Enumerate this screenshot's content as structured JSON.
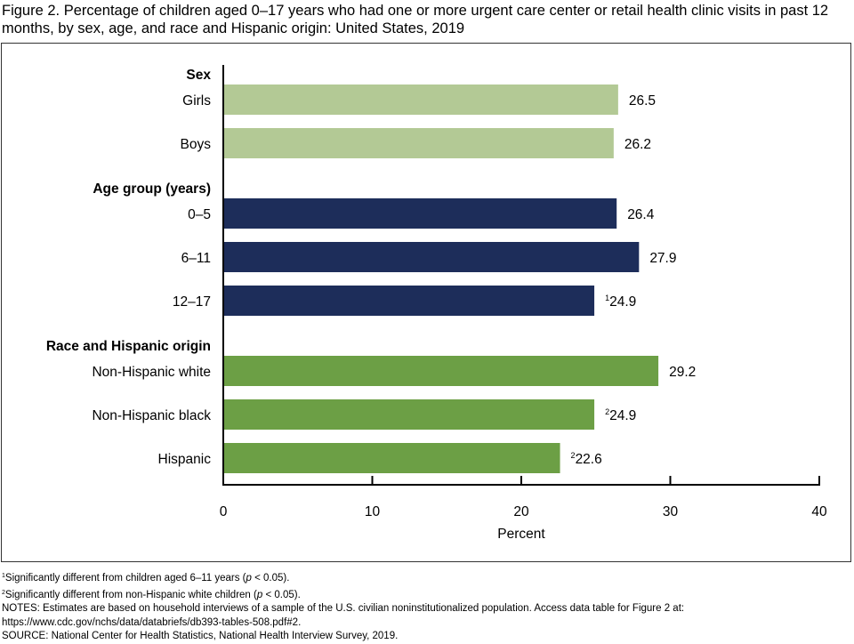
{
  "title": "Figure 2. Percentage of children aged 0–17 years who had one or more urgent care center or retail health clinic visits in past 12 months, by sex, age, and race and Hispanic origin: United States, 2019",
  "colors": {
    "sex": "#b3c995",
    "age": "#1d2d5a",
    "race": "#6c9f45",
    "axis": "#000000",
    "frame": "#333333"
  },
  "chart_data": {
    "type": "bar",
    "orientation": "horizontal",
    "title": "Figure 2. Percentage of children aged 0–17 years who had one or more urgent care center or retail health clinic visits in past 12 months, by sex, age, and race and Hispanic origin: United States, 2019",
    "xlabel": "Percent",
    "ylabel": "",
    "xlim": [
      0,
      40
    ],
    "xticks": [
      "0",
      "10",
      "20",
      "30",
      "40"
    ],
    "grid": false,
    "groups": [
      {
        "name": "Sex",
        "color_key": "sex",
        "categories": [
          "Girls",
          "Boys"
        ],
        "values": [
          26.5,
          26.2
        ],
        "labels": [
          "26.5",
          "26.2"
        ],
        "footnotes": [
          "",
          ""
        ]
      },
      {
        "name": "Age group (years)",
        "color_key": "age",
        "categories": [
          "0–5",
          "6–11",
          "12–17"
        ],
        "values": [
          26.4,
          27.9,
          24.9
        ],
        "labels": [
          "26.4",
          "27.9",
          "24.9"
        ],
        "footnotes": [
          "",
          "",
          "1"
        ]
      },
      {
        "name": "Race and Hispanic origin",
        "color_key": "race",
        "categories": [
          "Non-Hispanic white",
          "Non-Hispanic black",
          "Hispanic"
        ],
        "values": [
          29.2,
          24.9,
          22.6
        ],
        "labels": [
          "29.2",
          "24.9",
          "22.6"
        ],
        "footnotes": [
          "",
          "2",
          "2"
        ]
      }
    ]
  },
  "notes": {
    "fn1_mark": "1",
    "fn1_text": "Significantly different from children aged 6–11 years (",
    "fn1_p": "p",
    "fn1_end": " < 0.05).",
    "fn2_mark": "2",
    "fn2_text": "Significantly different from non-Hispanic white children (",
    "fn2_p": "p",
    "fn2_end": " < 0.05).",
    "notes_line1": "NOTES: Estimates are based on household interviews of a sample of the U.S. civilian noninstitutionalized population. Access data table for Figure 2 at:",
    "notes_line2": "https://www.cdc.gov/nchs/data/databriefs/db393-tables-508.pdf#2.",
    "source": "SOURCE: National Center for Health Statistics, National Health Interview Survey, 2019."
  }
}
